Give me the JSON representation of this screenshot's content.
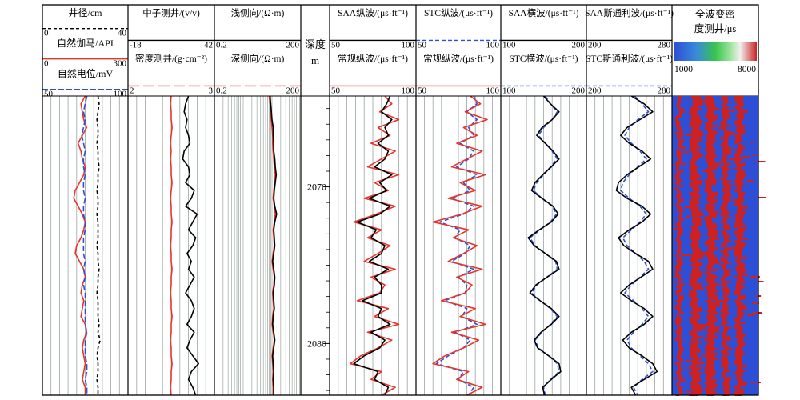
{
  "chart_data": {
    "type": "line",
    "depth_track": {
      "title_line1": "深度",
      "title_line2": "m",
      "ticks": [
        2070,
        2080
      ],
      "range": [
        2064.2,
        2083.3
      ]
    },
    "tracks": [
      {
        "id": "t1",
        "curves": [
          {
            "label": "井径/cm",
            "min": "0",
            "max": "40",
            "color": "#000000",
            "dash": "4,3"
          },
          {
            "label": "自然伽马/API",
            "min": "0",
            "max": "300",
            "color": "#e8332a",
            "dash": ""
          },
          {
            "label": "自然电位/mV",
            "min": "50",
            "max": "100",
            "color": "#2c4fd6",
            "dash": "7,3"
          }
        ],
        "series": [
          {
            "name": "井径",
            "color": "#000000",
            "dash": "4,3",
            "scale": [
              0,
              40
            ],
            "values": [
              26,
              26.5,
              26,
              25.5,
              26,
              26,
              25.5,
              26,
              26,
              26.5,
              26,
              26,
              25.5,
              26,
              26,
              25.5,
              26,
              26,
              26,
              25.5,
              26,
              26,
              26.5,
              26,
              26,
              25.5,
              26,
              26,
              26,
              26.5,
              26,
              27,
              26,
              25.5,
              26,
              26,
              25.5,
              26,
              26
            ]
          },
          {
            "name": "自然伽马",
            "color": "#e8332a",
            "dash": "",
            "scale": [
              0,
              300
            ],
            "values": [
              150,
              135,
              140,
              145,
              155,
              140,
              125,
              135,
              140,
              150,
              145,
              130,
              115,
              110,
              125,
              140,
              150,
              145,
              135,
              120,
              115,
              130,
              145,
              150,
              140,
              135,
              145,
              140,
              135,
              150,
              155,
              145,
              140,
              145,
              150,
              145,
              140,
              150,
              150
            ]
          },
          {
            "name": "自然电位",
            "color": "#2c4fd6",
            "dash": "7,3",
            "scale": [
              50,
              100
            ],
            "values": [
              76,
              75,
              74,
              75,
              74,
              73,
              74,
              75,
              74,
              74,
              75,
              74,
              74,
              75,
              74,
              74,
              75,
              75,
              74,
              74,
              74,
              75,
              74,
              75,
              74,
              75,
              75,
              75,
              75,
              75,
              76,
              75,
              75,
              75,
              76,
              76,
              75,
              76,
              76
            ]
          }
        ]
      },
      {
        "id": "t2",
        "curves": [
          {
            "label": "中子测井/(v/v)",
            "min": "-18",
            "max": "42",
            "color": "#000000",
            "dash": ""
          },
          {
            "label": "密度测井/(g·cm⁻³)",
            "min": "2",
            "max": "3",
            "color": "#e8332a",
            "dash": "14,5"
          }
        ],
        "series": [
          {
            "name": "中子测井",
            "color": "#000000",
            "dash": "",
            "scale": [
              -18,
              42
            ],
            "values": [
              24,
              22,
              21,
              23,
              22,
              24,
              25,
              21,
              20,
              24,
              25,
              22,
              28,
              26,
              22,
              30,
              27,
              24,
              29,
              27,
              23,
              26,
              24,
              28,
              25,
              22,
              26,
              28,
              26,
              23,
              28,
              25,
              23,
              27,
              31,
              26,
              24,
              27,
              29
            ]
          },
          {
            "name": "密度测井",
            "color": "#e8332a",
            "dash": "",
            "scale": [
              2,
              3
            ],
            "values": [
              2.5,
              2.49,
              2.5,
              2.5,
              2.51,
              2.5,
              2.49,
              2.5,
              2.49,
              2.5,
              2.5,
              2.51,
              2.5,
              2.49,
              2.5,
              2.5,
              2.51,
              2.5,
              2.5,
              2.49,
              2.5,
              2.5,
              2.51,
              2.5,
              2.5,
              2.49,
              2.5,
              2.5,
              2.51,
              2.5,
              2.5,
              2.49,
              2.5,
              2.5,
              2.51,
              2.5,
              2.5,
              2.49,
              2.5
            ]
          }
        ]
      },
      {
        "id": "t3",
        "curves": [
          {
            "label": "浅侧向/(Ω·m)",
            "min": "0.2",
            "max": "200",
            "color": "#000000",
            "dash": ""
          },
          {
            "label": "深侧向/(Ω·m)",
            "min": "0.2",
            "max": "200",
            "color": "#e8332a",
            "dash": "14,5"
          }
        ],
        "series": [
          {
            "name": "浅侧向",
            "color": "#e8332a",
            "dash": "",
            "scale": [
              0.2,
              200
            ],
            "log": true,
            "values": [
              16,
              17,
              18,
              19,
              20,
              21,
              21,
              22,
              23,
              24,
              26,
              25,
              23,
              22,
              24,
              26,
              24,
              22,
              23,
              24,
              22,
              20,
              22,
              24,
              23,
              21,
              22,
              23,
              21,
              20,
              22,
              24,
              22,
              20,
              21,
              22,
              21,
              22,
              22
            ]
          },
          {
            "name": "深侧向",
            "color": "#000000",
            "dash": "",
            "scale": [
              0.2,
              200
            ],
            "log": true,
            "values": [
              17,
              18,
              19,
              20,
              22,
              22,
              23,
              23,
              25,
              26,
              28,
              26,
              24,
              23,
              25,
              29,
              25,
              23,
              24,
              25,
              23,
              21,
              23,
              25,
              24,
              22,
              23,
              24,
              22,
              21,
              23,
              25,
              23,
              21,
              22,
              23,
              22,
              23,
              23
            ]
          }
        ]
      },
      {
        "id": "t4",
        "curves": [
          {
            "label": "SAA纵波/(μs·ft⁻¹)",
            "min": "50",
            "max": "100",
            "color": "#000000",
            "dash": ""
          },
          {
            "label": "常规纵波/(μs·ft⁻¹)",
            "min": "50",
            "max": "100",
            "color": "#e8332a",
            "dash": ""
          }
        ],
        "series": [
          {
            "name": "SAA纵波",
            "color": "#e8332a",
            "dash": "",
            "scale": [
              50,
              100
            ],
            "values": [
              82,
              86,
              79,
              90,
              78,
              85,
              74,
              88,
              80,
              72,
              90,
              76,
              84,
              70,
              88,
              77,
              64,
              80,
              72,
              85,
              78,
              70,
              88,
              74,
              82,
              79,
              66,
              84,
              76,
              90,
              72,
              86,
              78,
              68,
              62,
              80,
              74,
              88,
              80
            ]
          },
          {
            "name": "常规纵波",
            "color": "#000000",
            "dash": "",
            "scale": [
              50,
              100
            ],
            "values": [
              85,
              83,
              80,
              86,
              82,
              84,
              78,
              84,
              82,
              76,
              86,
              79,
              83,
              73,
              85,
              79,
              66,
              77,
              74,
              82,
              80,
              73,
              84,
              76,
              80,
              80,
              69,
              80,
              78,
              85,
              74,
              82,
              79,
              70,
              64,
              78,
              76,
              84,
              82
            ]
          }
        ]
      },
      {
        "id": "t5",
        "curves": [
          {
            "label": "STC纵波/(μs·ft⁻¹)",
            "min": "50",
            "max": "100",
            "color": "#2c4fd6",
            "dash": "5,3"
          },
          {
            "label": "常规纵波/(μs·ft⁻¹)",
            "min": "50",
            "max": "100",
            "color": "#e8332a",
            "dash": ""
          }
        ],
        "series": [
          {
            "name": "STC纵波",
            "color": "#2c4fd6",
            "dash": "5,3",
            "scale": [
              50,
              100
            ],
            "values": [
              84,
              86,
              80,
              86,
              81,
              84,
              76,
              84,
              81,
              74,
              86,
              78,
              82,
              71,
              84,
              78,
              64,
              76,
              73,
              82,
              79,
              71,
              84,
              75,
              80,
              79,
              67,
              80,
              77,
              86,
              73,
              82,
              78,
              69,
              62,
              78,
              75,
              84,
              81
            ]
          },
          {
            "name": "常规纵波",
            "color": "#e8332a",
            "dash": "",
            "scale": [
              50,
              100
            ],
            "values": [
              82,
              88,
              79,
              92,
              78,
              86,
              74,
              89,
              80,
              71,
              91,
              76,
              85,
              69,
              89,
              77,
              60,
              81,
              72,
              86,
              78,
              69,
              89,
              74,
              83,
              79,
              65,
              85,
              76,
              91,
              71,
              87,
              78,
              67,
              60,
              81,
              74,
              89,
              80
            ]
          }
        ]
      },
      {
        "id": "t6",
        "curves": [
          {
            "label": "SAA横波/(μs·ft⁻¹)",
            "min": "100",
            "max": "200",
            "color": "#000000",
            "dash": ""
          },
          {
            "label": "STC横波/(μs·ft⁻¹)",
            "min": "100",
            "max": "200",
            "color": "#2c4fd6",
            "dash": "5,3"
          }
        ],
        "series": [
          {
            "name": "STC横波",
            "color": "#2c4fd6",
            "dash": "5,3",
            "scale": [
              100,
              200
            ],
            "values": [
              152,
              158,
              166,
              160,
              150,
              144,
              152,
              160,
              166,
              158,
              150,
              142,
              138,
              148,
              160,
              165,
              158,
              146,
              134,
              140,
              152,
              164,
              166,
              154,
              142,
              136,
              146,
              158,
              166,
              158,
              148,
              140,
              144,
              156,
              166,
              168,
              158,
              150,
              152
            ]
          },
          {
            "name": "SAA横波",
            "color": "#000000",
            "dash": "",
            "scale": [
              100,
              200
            ],
            "values": [
              150,
              158,
              168,
              160,
              148,
              142,
              152,
              161,
              168,
              159,
              149,
              140,
              136,
              148,
              161,
              167,
              159,
              145,
              132,
              139,
              152,
              165,
              168,
              154,
              141,
              134,
              146,
              159,
              168,
              159,
              147,
              139,
              143,
              156,
              168,
              170,
              159,
              149,
              151
            ]
          }
        ]
      },
      {
        "id": "t7",
        "curves": [
          {
            "label": "SAA斯通利波/(μs·ft⁻¹)",
            "min": "200",
            "max": "280",
            "color": "#000000",
            "dash": ""
          },
          {
            "label": "STC斯通利波/(μs·ft⁻¹)",
            "min": "200",
            "max": "280",
            "color": "#2c4fd6",
            "dash": "5,3"
          }
        ],
        "series": [
          {
            "name": "STC斯通利波",
            "color": "#2c4fd6",
            "dash": "5,3",
            "scale": [
              200,
              280
            ],
            "values": [
              245,
              252,
              258,
              248,
              240,
              236,
              242,
              250,
              256,
              248,
              240,
              234,
              232,
              240,
              250,
              256,
              250,
              242,
              234,
              238,
              246,
              254,
              258,
              250,
              242,
              236,
              244,
              252,
              258,
              252,
              244,
              238,
              242,
              250,
              258,
              262,
              252,
              244,
              248
            ]
          },
          {
            "name": "SAA斯通利波",
            "color": "#000000",
            "dash": "",
            "scale": [
              200,
              280
            ],
            "values": [
              242,
              254,
              262,
              250,
              238,
              232,
              240,
              252,
              260,
              249,
              238,
              230,
              228,
              238,
              252,
              260,
              252,
              240,
              230,
              235,
              246,
              258,
              262,
              251,
              240,
              232,
              242,
              254,
              262,
              254,
              242,
              234,
              240,
              252,
              262,
              266,
              254,
              242,
              246
            ]
          }
        ]
      }
    ],
    "wavetrain": {
      "title_line1": "全波变密",
      "title_line2": "度测井/μs",
      "min": "1000",
      "max": "8000",
      "colors": [
        "#2c4fd6",
        "#37b24d",
        "#ffffff",
        "#cc2222"
      ]
    }
  }
}
